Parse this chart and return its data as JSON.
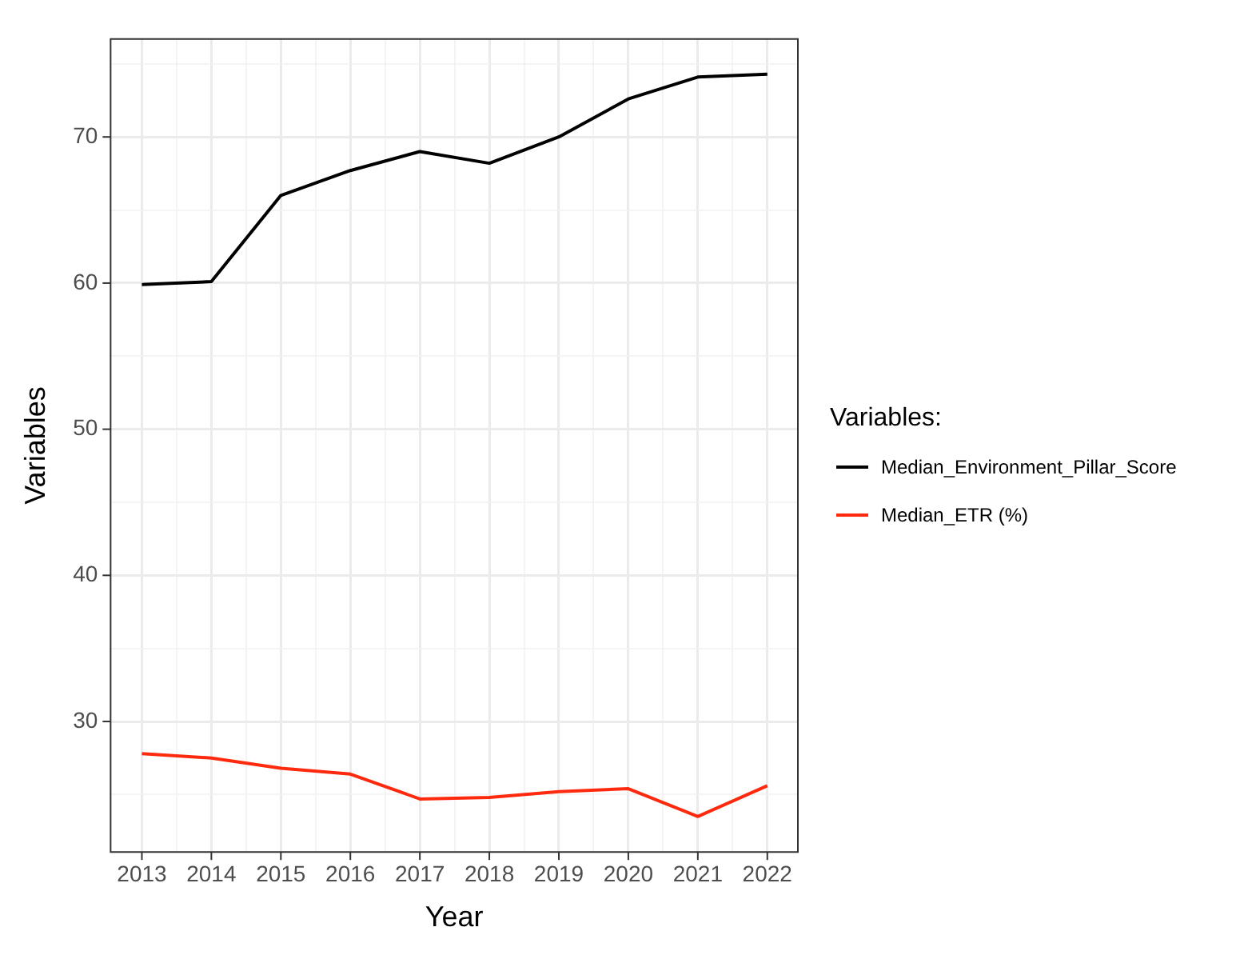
{
  "chart_data": {
    "type": "line",
    "xlabel": "Year",
    "ylabel": "Variables",
    "legend_title": "Variables:",
    "legend": "right",
    "grid": true,
    "marker": "none",
    "line_style": "solid",
    "x": [
      2013,
      2014,
      2015,
      2016,
      2017,
      2018,
      2019,
      2020,
      2021,
      2022
    ],
    "xlim": [
      2012.55,
      2022.44
    ],
    "xticks": [
      2013,
      {
        "value": 2013.5,
        "label": null
      },
      2014,
      {
        "value": 2014.5,
        "label": null
      },
      2015,
      {
        "value": 2015.5,
        "label": null
      },
      2016,
      {
        "value": 2016.5,
        "label": null
      },
      2017,
      {
        "value": 2017.5,
        "label": null
      },
      2018,
      {
        "value": 2018.5,
        "label": null
      },
      2019,
      {
        "value": 2019.5,
        "label": null
      },
      2020,
      {
        "value": 2020.5,
        "label": null
      },
      2021,
      {
        "value": 2021.5,
        "label": null
      },
      2022
    ],
    "ylim": [
      21.07,
      76.7
    ],
    "yticks": [
      {
        "value": 25,
        "label": null
      },
      30,
      {
        "value": 35,
        "label": null
      },
      40,
      {
        "value": 45,
        "label": null
      },
      50,
      {
        "value": 55,
        "label": null
      },
      60,
      {
        "value": 65,
        "label": null
      },
      70,
      {
        "value": 75,
        "label": null
      }
    ],
    "series": [
      {
        "name": "Median_Environment_Pillar_Score",
        "color": "#000000",
        "values": [
          59.9,
          60.1,
          66.0,
          67.7,
          69.0,
          68.2,
          70.0,
          72.6,
          74.1,
          74.3
        ]
      },
      {
        "name": "Median_ETR (%)",
        "color": "#ff2a0e",
        "values": [
          27.8,
          27.5,
          26.8,
          26.4,
          24.7,
          24.8,
          25.2,
          25.4,
          23.5,
          25.6
        ]
      }
    ]
  }
}
